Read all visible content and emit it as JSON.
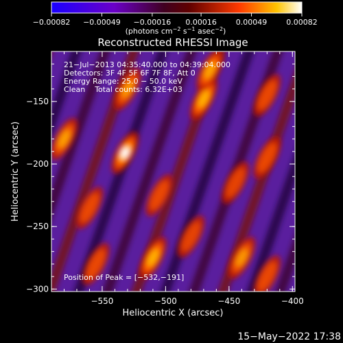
{
  "chart_data": {
    "type": "heatmap",
    "title": "Reconstructed RHESSI Image",
    "xlabel": "Heliocentric X (arcsec)",
    "ylabel": "Heliocentric Y (arcsec)",
    "xlim": [
      -590,
      -398
    ],
    "ylim": [
      -302,
      -110
    ],
    "x_ticks": [
      -550,
      -500,
      -450,
      -400
    ],
    "x_tick_labels": [
      "−550",
      "−500",
      "−450",
      "−400"
    ],
    "y_ticks": [
      -150,
      -200,
      -250,
      -300
    ],
    "y_tick_labels": [
      "−150",
      "−200",
      "−250",
      "−300"
    ],
    "colorbar": {
      "ticks": [
        -0.00082,
        -0.00049,
        -0.00016,
        0.00016,
        0.00049,
        0.00082
      ],
      "tick_labels": [
        "−0.00082",
        "−0.00049",
        "−0.00016",
        "0.00016",
        "0.00049",
        "0.00082"
      ],
      "colors": [
        "#1a00d0",
        "#4a00c0",
        "#7a1fb0",
        "#2a0008",
        "#b01500",
        "#ff6a00",
        "#ffd000",
        "#ffffff"
      ]
    },
    "annotations": [
      "21−Jul−2013 04:35:40.000 to 04:39:04.000",
      "Detectors: 3F 4F 5F 6F 7F 8F, Att 0",
      "Energy Range: 25.0 − 50.0 keV",
      "Clean    Total counts: 6.32E+03"
    ],
    "peak_label": "Position of Peak = [−532,−191]",
    "peak": {
      "x": -532,
      "y": -191
    },
    "sources": [
      {
        "x": -532,
        "y": -191,
        "value": 1.0
      },
      {
        "x": -580,
        "y": -180,
        "value": 0.7
      },
      {
        "x": -530,
        "y": -140,
        "value": 0.65
      },
      {
        "x": -470,
        "y": -148,
        "value": 0.85
      },
      {
        "x": -465,
        "y": -125,
        "value": 0.75
      },
      {
        "x": -420,
        "y": -145,
        "value": 0.55
      },
      {
        "x": -420,
        "y": -195,
        "value": 0.55
      },
      {
        "x": -505,
        "y": -225,
        "value": 0.55
      },
      {
        "x": -445,
        "y": -215,
        "value": 0.5
      },
      {
        "x": -560,
        "y": -235,
        "value": 0.55
      },
      {
        "x": -510,
        "y": -275,
        "value": 0.85
      },
      {
        "x": -555,
        "y": -280,
        "value": 0.55
      },
      {
        "x": -440,
        "y": -275,
        "value": 0.65
      },
      {
        "x": -420,
        "y": -290,
        "value": 0.55
      },
      {
        "x": -480,
        "y": -258,
        "value": 0.5
      }
    ]
  },
  "corner": {
    "date_stamp": "15−May−2022 17:38"
  }
}
